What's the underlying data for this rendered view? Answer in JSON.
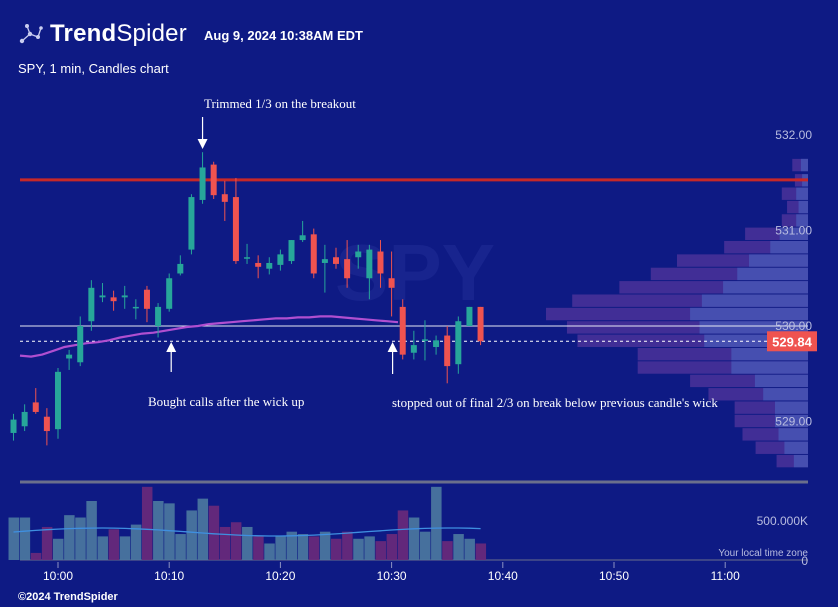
{
  "header": {
    "brand_bold": "Trend",
    "brand_light": "Spider",
    "timestamp": "Aug 9, 2024 10:38AM EDT",
    "subtitle": "SPY, 1 min, Candles chart",
    "copyright": "©2024 TrendSpider",
    "watermark": "SPY"
  },
  "colors": {
    "background": "#0e1a84",
    "up": "#27a69a",
    "down": "#ef5350",
    "resistance": "#c62828",
    "vwap": "#b04fd0",
    "price_badge": "#ef5350"
  },
  "annotations": [
    {
      "text": "Trimmed 1/3 on the breakout",
      "x_time": "10:13",
      "price": 532.18,
      "arrow": "down"
    },
    {
      "text": "Bought calls after the wick up",
      "x_time": "10:10",
      "price": 529.1,
      "arrow": "up"
    },
    {
      "text": "stopped out of final 2/3 on break below previous candle's wick",
      "x_time": "10:30",
      "price": 529.1,
      "arrow": "up"
    }
  ],
  "chart_data": {
    "type": "candlestick",
    "title": "SPY, 1 min, Candles chart",
    "timeframe": "1 min",
    "x_ticks": [
      "10:00",
      "10:10",
      "10:20",
      "10:30",
      "10:40",
      "10:50",
      "11:00"
    ],
    "y_ticks": [
      529.0,
      530.0,
      531.0,
      532.0
    ],
    "ylim": [
      528.55,
      532.15
    ],
    "last_price": "529.84",
    "resistance_price": 531.53,
    "reference_line_price": 530.0,
    "volume_axis_label": "500.000K",
    "volume_axis_zero": "0",
    "timezone_note": "Your local time zone",
    "candles": [
      {
        "t": "09:56",
        "o": 528.88,
        "h": 529.08,
        "l": 528.8,
        "c": 529.02
      },
      {
        "t": "09:57",
        "o": 528.95,
        "h": 529.18,
        "l": 528.9,
        "c": 529.1
      },
      {
        "t": "09:58",
        "o": 529.2,
        "h": 529.35,
        "l": 529.08,
        "c": 529.1
      },
      {
        "t": "09:59",
        "o": 529.05,
        "h": 529.14,
        "l": 528.75,
        "c": 528.9
      },
      {
        "t": "10:00",
        "o": 528.92,
        "h": 529.56,
        "l": 528.82,
        "c": 529.52
      },
      {
        "t": "10:01",
        "o": 529.66,
        "h": 529.75,
        "l": 529.54,
        "c": 529.7
      },
      {
        "t": "10:02",
        "o": 529.62,
        "h": 530.1,
        "l": 529.58,
        "c": 530.0
      },
      {
        "t": "10:03",
        "o": 530.05,
        "h": 530.48,
        "l": 529.95,
        "c": 530.4
      },
      {
        "t": "10:04",
        "o": 530.3,
        "h": 530.45,
        "l": 530.25,
        "c": 530.32
      },
      {
        "t": "10:05",
        "o": 530.3,
        "h": 530.37,
        "l": 530.16,
        "c": 530.26
      },
      {
        "t": "10:06",
        "o": 530.3,
        "h": 530.42,
        "l": 530.18,
        "c": 530.32
      },
      {
        "t": "10:07",
        "o": 530.2,
        "h": 530.28,
        "l": 530.07,
        "c": 530.2
      },
      {
        "t": "10:08",
        "o": 530.38,
        "h": 530.42,
        "l": 530.04,
        "c": 530.18
      },
      {
        "t": "10:09",
        "o": 530.0,
        "h": 530.24,
        "l": 529.88,
        "c": 530.2
      },
      {
        "t": "10:10",
        "o": 530.18,
        "h": 530.55,
        "l": 530.15,
        "c": 530.5
      },
      {
        "t": "10:11",
        "o": 530.55,
        "h": 530.74,
        "l": 530.53,
        "c": 530.65
      },
      {
        "t": "10:12",
        "o": 530.8,
        "h": 531.38,
        "l": 530.75,
        "c": 531.35
      },
      {
        "t": "10:13",
        "o": 531.32,
        "h": 531.82,
        "l": 531.28,
        "c": 531.66
      },
      {
        "t": "10:14",
        "o": 531.69,
        "h": 531.72,
        "l": 531.33,
        "c": 531.37
      },
      {
        "t": "10:15",
        "o": 531.38,
        "h": 531.52,
        "l": 531.1,
        "c": 531.3
      },
      {
        "t": "10:16",
        "o": 531.35,
        "h": 531.55,
        "l": 530.65,
        "c": 530.68
      },
      {
        "t": "10:17",
        "o": 530.72,
        "h": 530.86,
        "l": 530.65,
        "c": 530.72
      },
      {
        "t": "10:18",
        "o": 530.66,
        "h": 530.74,
        "l": 530.5,
        "c": 530.62
      },
      {
        "t": "10:19",
        "o": 530.6,
        "h": 530.72,
        "l": 530.54,
        "c": 530.66
      },
      {
        "t": "10:20",
        "o": 530.64,
        "h": 530.8,
        "l": 530.58,
        "c": 530.75
      },
      {
        "t": "10:21",
        "o": 530.68,
        "h": 530.9,
        "l": 530.65,
        "c": 530.9
      },
      {
        "t": "10:22",
        "o": 530.9,
        "h": 531.1,
        "l": 530.88,
        "c": 530.95
      },
      {
        "t": "10:23",
        "o": 530.96,
        "h": 531.02,
        "l": 530.5,
        "c": 530.55
      },
      {
        "t": "10:24",
        "o": 530.66,
        "h": 530.85,
        "l": 530.35,
        "c": 530.7
      },
      {
        "t": "10:25",
        "o": 530.72,
        "h": 530.82,
        "l": 530.6,
        "c": 530.65
      },
      {
        "t": "10:26",
        "o": 530.7,
        "h": 530.9,
        "l": 530.4,
        "c": 530.5
      },
      {
        "t": "10:27",
        "o": 530.72,
        "h": 530.85,
        "l": 530.6,
        "c": 530.78
      },
      {
        "t": "10:28",
        "o": 530.5,
        "h": 530.85,
        "l": 530.28,
        "c": 530.8
      },
      {
        "t": "10:29",
        "o": 530.78,
        "h": 530.9,
        "l": 530.4,
        "c": 530.55
      },
      {
        "t": "10:30",
        "o": 530.5,
        "h": 530.78,
        "l": 530.1,
        "c": 530.4
      },
      {
        "t": "10:31",
        "o": 530.2,
        "h": 530.28,
        "l": 529.65,
        "c": 529.7
      },
      {
        "t": "10:32",
        "o": 529.72,
        "h": 529.95,
        "l": 529.65,
        "c": 529.8
      },
      {
        "t": "10:33",
        "o": 529.86,
        "h": 530.06,
        "l": 529.64,
        "c": 529.86
      },
      {
        "t": "10:34",
        "o": 529.78,
        "h": 529.9,
        "l": 529.7,
        "c": 529.85
      },
      {
        "t": "10:35",
        "o": 529.9,
        "h": 530.0,
        "l": 529.4,
        "c": 529.58
      },
      {
        "t": "10:36",
        "o": 529.6,
        "h": 530.1,
        "l": 529.5,
        "c": 530.05
      },
      {
        "t": "10:37",
        "o": 530.0,
        "h": 530.2,
        "l": 530.0,
        "c": 530.2
      },
      {
        "t": "10:38",
        "o": 530.2,
        "h": 530.2,
        "l": 529.8,
        "c": 529.84
      }
    ],
    "volume": [
      0.36,
      0.36,
      0.06,
      0.28,
      0.18,
      0.38,
      0.36,
      0.5,
      0.2,
      0.26,
      0.2,
      0.3,
      0.62,
      0.5,
      0.48,
      0.22,
      0.42,
      0.52,
      0.46,
      0.28,
      0.32,
      0.28,
      0.2,
      0.14,
      0.2,
      0.24,
      0.22,
      0.2,
      0.24,
      0.18,
      0.24,
      0.18,
      0.2,
      0.16,
      0.22,
      0.42,
      0.36,
      0.24,
      0.62,
      0.16,
      0.22,
      0.18,
      0.14
    ],
    "vwap": [
      529.69,
      529.68,
      529.7,
      529.74,
      529.78,
      529.8,
      529.82,
      529.83,
      529.85,
      529.88,
      529.9,
      529.92,
      529.93,
      529.95,
      529.97,
      529.99,
      530.0,
      530.02,
      530.03,
      530.04,
      530.05,
      530.06,
      530.07,
      530.08,
      530.08,
      530.09,
      530.09,
      530.1,
      530.1,
      530.09,
      530.08,
      530.07,
      530.06,
      530.05,
      530.04
    ],
    "volume_profile": [
      {
        "price": 531.68,
        "value": 0.06
      },
      {
        "price": 531.52,
        "value": 0.05
      },
      {
        "price": 531.38,
        "value": 0.1
      },
      {
        "price": 531.24,
        "value": 0.08
      },
      {
        "price": 531.1,
        "value": 0.1
      },
      {
        "price": 530.96,
        "value": 0.24
      },
      {
        "price": 530.82,
        "value": 0.32
      },
      {
        "price": 530.68,
        "value": 0.5
      },
      {
        "price": 530.54,
        "value": 0.6
      },
      {
        "price": 530.4,
        "value": 0.72
      },
      {
        "price": 530.26,
        "value": 0.9
      },
      {
        "price": 530.12,
        "value": 1.0
      },
      {
        "price": 529.98,
        "value": 0.92
      },
      {
        "price": 529.84,
        "value": 0.88
      },
      {
        "price": 529.7,
        "value": 0.65
      },
      {
        "price": 529.56,
        "value": 0.65
      },
      {
        "price": 529.42,
        "value": 0.45
      },
      {
        "price": 529.28,
        "value": 0.38
      },
      {
        "price": 529.14,
        "value": 0.28
      },
      {
        "price": 529.0,
        "value": 0.28
      },
      {
        "price": 528.86,
        "value": 0.25
      },
      {
        "price": 528.72,
        "value": 0.2
      },
      {
        "price": 528.58,
        "value": 0.12
      }
    ]
  }
}
